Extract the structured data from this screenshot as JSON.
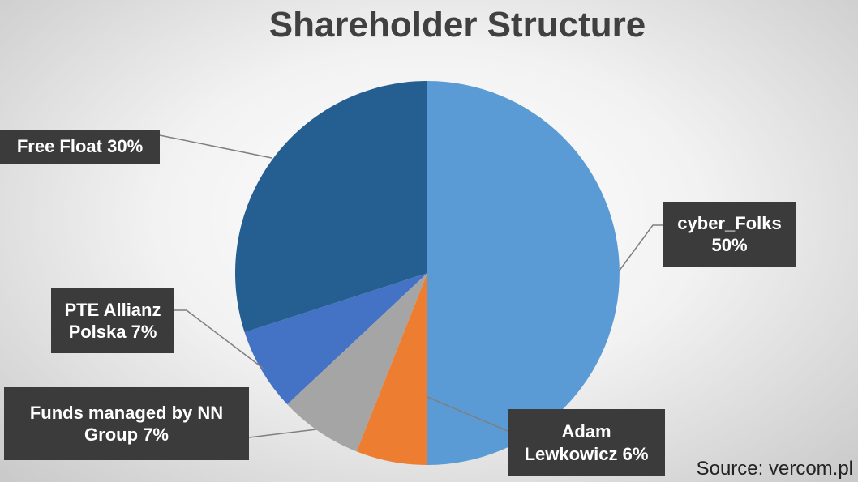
{
  "chart_data": {
    "type": "pie",
    "title": "Shareholder Structure",
    "categories": [
      "cyber_Folks",
      "Adam Lewkowicz",
      "Funds managed by NN Group",
      "PTE Allianz Polska",
      "Free Float"
    ],
    "values": [
      50,
      6,
      7,
      7,
      30
    ],
    "value_labels": [
      "50%",
      "6%",
      "7%",
      "7%",
      "30%"
    ],
    "colors": [
      "#5b9bd5",
      "#ed7d31",
      "#a5a5a5",
      "#4472c4",
      "#255e91"
    ],
    "source": "Source: vercom.pl"
  }
}
